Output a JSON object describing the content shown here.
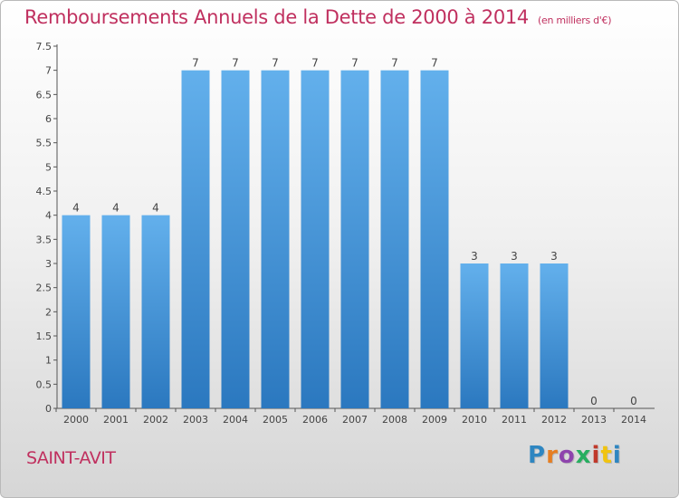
{
  "header": {
    "title": "Remboursements Annuels de la Dette de 2000 à 2014",
    "unit": "(en milliers d'€)"
  },
  "commune": "SAINT-AVIT",
  "logo": {
    "text": "Proxiti",
    "letters": [
      {
        "char": "P",
        "color": "#2e86c1"
      },
      {
        "char": "r",
        "color": "#e67e22"
      },
      {
        "char": "o",
        "color": "#8e44ad"
      },
      {
        "char": "x",
        "color": "#27ae60"
      },
      {
        "char": "i",
        "color": "#c0392b"
      },
      {
        "char": "t",
        "color": "#f1c40f"
      },
      {
        "char": "i",
        "color": "#2e86c1"
      }
    ]
  },
  "colors": {
    "title": "#c0305f",
    "bar_top": "#63b0ec",
    "bar_bottom": "#2b78bf",
    "axis": "#555555",
    "text": "#444444"
  },
  "chart_data": {
    "type": "bar",
    "categories": [
      "2000",
      "2001",
      "2002",
      "2003",
      "2004",
      "2005",
      "2006",
      "2007",
      "2008",
      "2009",
      "2010",
      "2011",
      "2012",
      "2013",
      "2014"
    ],
    "values": [
      4,
      4,
      4,
      7,
      7,
      7,
      7,
      7,
      7,
      7,
      3,
      3,
      3,
      0,
      0
    ],
    "data_labels": [
      "4",
      "4",
      "4",
      "7",
      "7",
      "7",
      "7",
      "7",
      "7",
      "7",
      "3",
      "3",
      "3",
      "0",
      "0"
    ],
    "ylim": [
      0,
      7.5
    ],
    "y_ticks": [
      0,
      0.5,
      1,
      1.5,
      2,
      2.5,
      3,
      3.5,
      4,
      4.5,
      5,
      5.5,
      6,
      6.5,
      7,
      7.5
    ],
    "y_tick_labels": [
      "0",
      "0.5",
      "1",
      "1.5",
      "2",
      "2.5",
      "3",
      "3.5",
      "4",
      "4.5",
      "5",
      "5.5",
      "6",
      "6.5",
      "7",
      "7.5"
    ],
    "xlabel": "",
    "ylabel": "",
    "grid": false,
    "legend": "none"
  }
}
